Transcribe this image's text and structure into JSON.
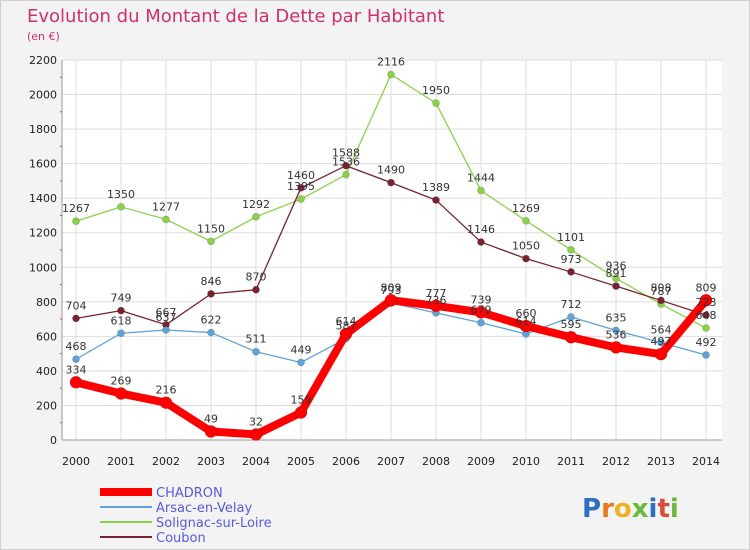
{
  "chart_data": {
    "type": "line",
    "title": "Evolution du Montant de la Dette par Habitant",
    "subtitle": "(en €)",
    "xlabel": "",
    "ylabel": "",
    "ylim": [
      0,
      2200
    ],
    "yticks": [
      0,
      200,
      400,
      600,
      800,
      1000,
      1200,
      1400,
      1600,
      1800,
      2000,
      2200
    ],
    "categories": [
      "2000",
      "2001",
      "2002",
      "2003",
      "2004",
      "2005",
      "2006",
      "2007",
      "2008",
      "2009",
      "2010",
      "2011",
      "2012",
      "2013",
      "2014"
    ],
    "grid": true,
    "legend_position": "bottom-left",
    "series": [
      {
        "name": "Solignac-sur-Loire",
        "color": "#8ad24a",
        "width": 1.3,
        "marker": 3.5,
        "values": [
          1267,
          1350,
          1277,
          1150,
          1292,
          1395,
          1536,
          2116,
          1950,
          1444,
          1269,
          1101,
          936,
          787,
          648
        ],
        "labels": [
          "1267",
          "1350",
          "1277",
          "1150",
          "1292",
          "1395",
          "1536",
          "2116",
          "1950",
          "1444",
          "1269",
          "1101",
          "936",
          "787",
          "648"
        ]
      },
      {
        "name": "Coubon",
        "color": "#7a2230",
        "width": 1.3,
        "marker": 3.5,
        "values": [
          704,
          749,
          667,
          846,
          870,
          1460,
          1588,
          1490,
          1389,
          1146,
          1050,
          973,
          891,
          808,
          723
        ],
        "labels": [
          "704",
          "749",
          "667",
          "846",
          "870",
          "1460",
          "1588",
          "1490",
          "1389",
          "1146",
          "1050",
          "973",
          "891",
          "808",
          "723"
        ]
      },
      {
        "name": "Arsac-en-Velay",
        "color": "#5fa3d8",
        "width": 1.3,
        "marker": 3.5,
        "values": [
          468,
          618,
          637,
          622,
          511,
          449,
          587,
          793,
          736,
          679,
          614,
          712,
          635,
          564,
          492
        ],
        "labels": [
          "468",
          "618",
          "637",
          "622",
          "511",
          "449",
          "587",
          "793",
          "736",
          "679",
          "614",
          "712",
          "635",
          "564",
          "492"
        ]
      },
      {
        "name": "CHADRON",
        "color": "#ff0000",
        "width": 8,
        "marker": 6,
        "values": [
          334,
          269,
          216,
          49,
          32,
          159,
          614,
          809,
          777,
          739,
          660,
          595,
          536,
          497,
          809
        ],
        "labels": [
          "334",
          "269",
          "216",
          "49",
          "32",
          "159",
          "614",
          "809",
          "777",
          "739",
          "660",
          "595",
          "536",
          "497",
          "809"
        ]
      }
    ],
    "legend": [
      {
        "name": "CHADRON",
        "color": "#ff0000",
        "thick": true
      },
      {
        "name": "Arsac-en-Velay",
        "color": "#5fa3d8",
        "thick": false
      },
      {
        "name": "Solignac-sur-Loire",
        "color": "#8ad24a",
        "thick": false
      },
      {
        "name": "Coubon",
        "color": "#7a2230",
        "thick": false
      }
    ]
  },
  "logo": {
    "letters": [
      {
        "char": "P",
        "color": "#2d6fc0"
      },
      {
        "char": "r",
        "color": "#e87a1a"
      },
      {
        "char": "o",
        "color": "#f0b020"
      },
      {
        "char": "x",
        "color": "#6cb83a"
      },
      {
        "char": "i",
        "color": "#2d6fc0"
      },
      {
        "char": "t",
        "color": "#d94c3a"
      },
      {
        "char": "i",
        "color": "#6cb83a"
      }
    ]
  }
}
